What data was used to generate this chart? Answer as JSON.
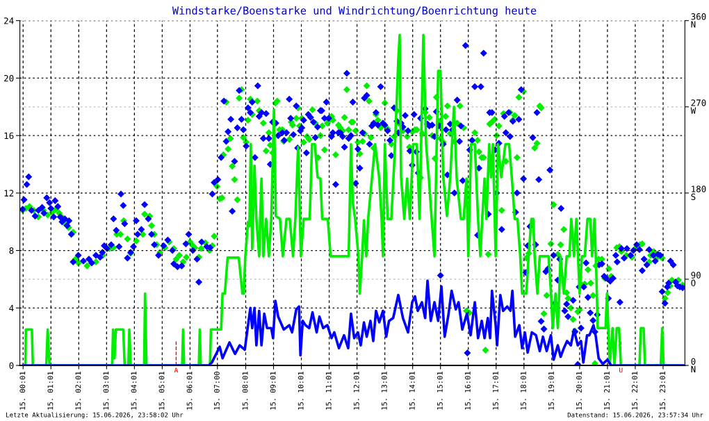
{
  "chart_data": {
    "type": "line",
    "title": "Windstarke/Boenstarke und Windrichtung/Boenrichtung heute",
    "xlim": [
      "2026-06-14T23:54",
      "2026-06-15T23:48"
    ],
    "xticks": [
      {
        "value": "2026-06-15T00:01",
        "label": "15. 00:01"
      },
      {
        "value": "2026-06-15T01:01",
        "label": "15. 01:01"
      },
      {
        "value": "2026-06-15T02:01",
        "label": "15. 02:01"
      },
      {
        "value": "2026-06-15T03:01",
        "label": "15. 03:01"
      },
      {
        "value": "2026-06-15T04:01",
        "label": "15. 04:01"
      },
      {
        "value": "2026-06-15T05:01",
        "label": "15. 05:01"
      },
      {
        "value": "2026-06-15T06:01",
        "label": "15. 06:01"
      },
      {
        "value": "2026-06-15T07:00",
        "label": "15. 07:00"
      },
      {
        "value": "2026-06-15T08:01",
        "label": "15. 08:01"
      },
      {
        "value": "2026-06-15T09:01",
        "label": "15. 09:01"
      },
      {
        "value": "2026-06-15T10:01",
        "label": "15. 10:01"
      },
      {
        "value": "2026-06-15T11:01",
        "label": "15. 11:01"
      },
      {
        "value": "2026-06-15T12:01",
        "label": "15. 12:01"
      },
      {
        "value": "2026-06-15T13:01",
        "label": "15. 13:01"
      },
      {
        "value": "2026-06-15T14:01",
        "label": "15. 14:01"
      },
      {
        "value": "2026-06-15T15:01",
        "label": "15. 15:01"
      },
      {
        "value": "2026-06-15T16:01",
        "label": "15. 16:01"
      },
      {
        "value": "2026-06-15T17:01",
        "label": "15. 17:01"
      },
      {
        "value": "2026-06-15T18:01",
        "label": "15. 18:01"
      },
      {
        "value": "2026-06-15T19:01",
        "label": "15. 19:01"
      },
      {
        "value": "2026-06-15T20:01",
        "label": "15. 20:01"
      },
      {
        "value": "2026-06-15T21:01",
        "label": "15. 21:01"
      },
      {
        "value": "2026-06-15T22:01",
        "label": "15. 22:01"
      },
      {
        "value": "2026-06-15T23:01",
        "label": "15. 23:01"
      }
    ],
    "ylim": [
      0,
      24
    ],
    "yticks": [
      0,
      4,
      8,
      12,
      16,
      20,
      24
    ],
    "y2lim": [
      0,
      360
    ],
    "y2ticks": [
      {
        "value": 0,
        "label": "0\nN"
      },
      {
        "value": 90,
        "label": "90\nO"
      },
      {
        "value": 180,
        "label": "180\nS"
      },
      {
        "value": 270,
        "label": "270\nW"
      },
      {
        "value": 360,
        "label": "360\nN"
      }
    ],
    "grid": true,
    "series": [
      {
        "type": "scatter",
        "axis": "y2",
        "marker": "diamond",
        "color": "#00ee00",
        "x": [
          "2026-06-15T00:00",
          "2026-06-15T00:07",
          "2026-06-15T00:15",
          "2026-06-15T00:24",
          "2026-06-15T00:34",
          "2026-06-15T00:45",
          "2026-06-15T00:54",
          "2026-06-15T01:04",
          "2026-06-15T01:12",
          "2026-06-15T01:19",
          "2026-06-15T01:24",
          "2026-06-15T01:31",
          "2026-06-15T01:39",
          "2026-06-15T01:49",
          "2026-06-15T01:54",
          "2026-06-15T02:00",
          "2026-06-15T02:19",
          "2026-06-15T02:38",
          "2026-06-15T02:53",
          "2026-06-15T03:07",
          "2026-06-15T03:16",
          "2026-06-15T03:23",
          "2026-06-15T03:31",
          "2026-06-15T03:38",
          "2026-06-15T03:46",
          "2026-06-15T03:53",
          "2026-06-15T04:05",
          "2026-06-15T04:19",
          "2026-06-15T04:23",
          "2026-06-15T04:34",
          "2026-06-15T04:38",
          "2026-06-15T04:44",
          "2026-06-15T04:49",
          "2026-06-15T04:56",
          "2026-06-15T05:07",
          "2026-06-15T05:16",
          "2026-06-15T05:26",
          "2026-06-15T05:31",
          "2026-06-15T05:38",
          "2026-06-15T05:46",
          "2026-06-15T05:53",
          "2026-06-15T06:01",
          "2026-06-15T06:07",
          "2026-06-15T06:11",
          "2026-06-15T06:20",
          "2026-06-15T06:25",
          "2026-06-15T06:34",
          "2026-06-15T06:43",
          "2026-06-15T06:49",
          "2026-06-15T06:53",
          "2026-06-15T06:59",
          "2026-06-15T07:05",
          "2026-06-15T07:10",
          "2026-06-15T07:13",
          "2026-06-15T07:19",
          "2026-06-15T07:23",
          "2026-06-15T07:28",
          "2026-06-15T07:32",
          "2026-06-15T07:37",
          "2026-06-15T07:43",
          "2026-06-15T07:47",
          "2026-06-15T07:52",
          "2026-06-15T07:56",
          "2026-06-15T08:02",
          "2026-06-15T08:06",
          "2026-06-15T08:11",
          "2026-06-15T08:15",
          "2026-06-15T08:26",
          "2026-06-15T08:30",
          "2026-06-15T08:39",
          "2026-06-15T08:45",
          "2026-06-15T08:51",
          "2026-06-15T08:54",
          "2026-06-15T08:59",
          "2026-06-15T09:05",
          "2026-06-15T09:09",
          "2026-06-15T09:14",
          "2026-06-15T09:20",
          "2026-06-15T09:23",
          "2026-06-15T09:35",
          "2026-06-15T09:39",
          "2026-06-15T09:42",
          "2026-06-15T09:50",
          "2026-06-15T09:54",
          "2026-06-15T09:57",
          "2026-06-15T10:02",
          "2026-06-15T10:06",
          "2026-06-15T10:13",
          "2026-06-15T10:18",
          "2026-06-15T10:25",
          "2026-06-15T10:31",
          "2026-06-15T10:37",
          "2026-06-15T10:42",
          "2026-06-15T10:46",
          "2026-06-15T10:51",
          "2026-06-15T10:57",
          "2026-06-15T11:01",
          "2026-06-15T11:06",
          "2026-06-15T11:09",
          "2026-06-15T11:15",
          "2026-06-15T11:21",
          "2026-06-15T11:25",
          "2026-06-15T11:30",
          "2026-06-15T11:34",
          "2026-06-15T11:39",
          "2026-06-15T11:43",
          "2026-06-15T11:49",
          "2026-06-15T11:52",
          "2026-06-15T11:58",
          "2026-06-15T12:03",
          "2026-06-15T12:07",
          "2026-06-15T12:13",
          "2026-06-15T12:17",
          "2026-06-15T12:22",
          "2026-06-15T12:27",
          "2026-06-15T12:31",
          "2026-06-15T12:37",
          "2026-06-15T12:42",
          "2026-06-15T12:46",
          "2026-06-15T12:52",
          "2026-06-15T13:01",
          "2026-06-15T13:07",
          "2026-06-15T13:15",
          "2026-06-15T13:21",
          "2026-06-15T13:27",
          "2026-06-15T13:31",
          "2026-06-15T13:40",
          "2026-06-15T13:49",
          "2026-06-15T13:54",
          "2026-06-15T14:00",
          "2026-06-15T14:06",
          "2026-06-15T14:10",
          "2026-06-15T14:18",
          "2026-06-15T14:22",
          "2026-06-15T14:28",
          "2026-06-15T14:37",
          "2026-06-15T14:43",
          "2026-06-15T14:49",
          "2026-06-15T14:52",
          "2026-06-15T14:58",
          "2026-06-15T15:01",
          "2026-06-15T15:07",
          "2026-06-15T15:12",
          "2026-06-15T15:16",
          "2026-06-15T15:22",
          "2026-06-15T15:31",
          "2026-06-15T15:37",
          "2026-06-15T15:43",
          "2026-06-15T15:51",
          "2026-06-15T15:57",
          "2026-06-15T16:03",
          "2026-06-15T16:10",
          "2026-06-15T16:15",
          "2026-06-15T16:21",
          "2026-06-15T16:24",
          "2026-06-15T16:30",
          "2026-06-15T16:34",
          "2026-06-15T16:38",
          "2026-06-15T16:44",
          "2026-06-15T16:47",
          "2026-06-15T16:52",
          "2026-06-15T16:58",
          "2026-06-15T17:02",
          "2026-06-15T17:07",
          "2026-06-15T17:13",
          "2026-06-15T17:17",
          "2026-06-15T17:22",
          "2026-06-15T17:31",
          "2026-06-15T17:37",
          "2026-06-15T17:41",
          "2026-06-15T17:46",
          "2026-06-15T17:50",
          "2026-06-15T18:00",
          "2026-06-15T18:06",
          "2026-06-15T18:11",
          "2026-06-15T18:24",
          "2026-06-15T18:29",
          "2026-06-15T18:35",
          "2026-06-15T18:38",
          "2026-06-15T18:44",
          "2026-06-15T18:50",
          "2026-06-15T18:59",
          "2026-06-15T19:05",
          "2026-06-15T19:14",
          "2026-06-15T19:20",
          "2026-06-15T19:27",
          "2026-06-15T19:33",
          "2026-06-15T19:36",
          "2026-06-15T19:42",
          "2026-06-15T19:47",
          "2026-06-15T19:51",
          "2026-06-15T19:57",
          "2026-06-15T20:01",
          "2026-06-15T20:06",
          "2026-06-15T20:12",
          "2026-06-15T20:19",
          "2026-06-15T20:25",
          "2026-06-15T20:30",
          "2026-06-15T20:34",
          "2026-06-15T20:36",
          "2026-06-15T20:42",
          "2026-06-15T20:49",
          "2026-06-15T20:55",
          "2026-06-15T21:04",
          "2026-06-15T21:09",
          "2026-06-15T21:21",
          "2026-06-15T21:27",
          "2026-06-15T21:31",
          "2026-06-15T21:42",
          "2026-06-15T21:54",
          "2026-06-15T22:01",
          "2026-06-15T22:11",
          "2026-06-15T22:16",
          "2026-06-15T22:31",
          "2026-06-15T22:34",
          "2026-06-15T22:41",
          "2026-06-15T22:47",
          "2026-06-15T22:59",
          "2026-06-15T23:05",
          "2026-06-15T23:11",
          "2026-06-15T23:16",
          "2026-06-15T23:20",
          "2026-06-15T23:34",
          "2026-06-15T23:43"
        ],
        "values": [
          162,
          164,
          166,
          162,
          155,
          162,
          157,
          160,
          163,
          159,
          155,
          148,
          144,
          139,
          111,
          107,
          104,
          108,
          115,
          122,
          123,
          137,
          137,
          151,
          132,
          117,
          130,
          137,
          158,
          156,
          146,
          137,
          126,
          118,
          123,
          129,
          122,
          111,
          115,
          108,
          113,
          129,
          125,
          123,
          113,
          122,
          128,
          120,
          125,
          135,
          187,
          174,
          175,
          220,
          275,
          226,
          237,
          208,
          194,
          173,
          279,
          288,
          238,
          233,
          256,
          278,
          262,
          276,
          266,
          253,
          224,
          243,
          230,
          222,
          274,
          276,
          246,
          246,
          234,
          236,
          254,
          251,
          258,
          269,
          250,
          258,
          233,
          239,
          236,
          267,
          253,
          217,
          240,
          250,
          225,
          253,
          256,
          260,
          256,
          220,
          251,
          248,
          245,
          259,
          288,
          246,
          254,
          254,
          245,
          233,
          221,
          234,
          242,
          292,
          276,
          238,
          227,
          262,
          256,
          248,
          274,
          247,
          231,
          239,
          266,
          253,
          245,
          239,
          228,
          244,
          246,
          246,
          196,
          242,
          264,
          259,
          240,
          216,
          280,
          255,
          237,
          233,
          260,
          271,
          242,
          234,
          253,
          271,
          248,
          57,
          55,
          235,
          243,
          235,
          223,
          217,
          217,
          16,
          116,
          252,
          254,
          257,
          240,
          250,
          162,
          263,
          213,
          264,
          256,
          261,
          217,
          280,
          286,
          112,
          117,
          227,
          232,
          271,
          269,
          54,
          73,
          127,
          168,
          116,
          126,
          142,
          76,
          70,
          60,
          48,
          36,
          56,
          58,
          84,
          85,
          100,
          86,
          73,
          2,
          104,
          111,
          111,
          91,
          101,
          93,
          123,
          124,
          119,
          115,
          113,
          122,
          126,
          127,
          108,
          115,
          119,
          112,
          112,
          70,
          76,
          83,
          89,
          89,
          84
        ]
      },
      {
        "type": "scatter",
        "axis": "y2",
        "marker": "diamond",
        "color": "#0000ff",
        "x": [
          "2026-06-15T00:00",
          "2026-06-15T00:03",
          "2026-06-15T00:09",
          "2026-06-15T00:13",
          "2026-06-15T00:19",
          "2026-06-15T00:27",
          "2026-06-15T00:34",
          "2026-06-15T00:42",
          "2026-06-15T00:46",
          "2026-06-15T00:52",
          "2026-06-15T00:58",
          "2026-06-15T01:01",
          "2026-06-15T01:07",
          "2026-06-15T01:10",
          "2026-06-15T01:16",
          "2026-06-15T01:21",
          "2026-06-15T01:25",
          "2026-06-15T01:31",
          "2026-06-15T01:36",
          "2026-06-15T01:40",
          "2026-06-15T01:45",
          "2026-06-15T01:49",
          "2026-06-15T02:00",
          "2026-06-15T02:11",
          "2026-06-15T02:23",
          "2026-06-15T02:29",
          "2026-06-15T02:38",
          "2026-06-15T02:47",
          "2026-06-15T02:52",
          "2026-06-15T02:56",
          "2026-06-15T03:02",
          "2026-06-15T03:11",
          "2026-06-15T03:16",
          "2026-06-15T03:22",
          "2026-06-15T03:28",
          "2026-06-15T03:32",
          "2026-06-15T03:37",
          "2026-06-15T03:40",
          "2026-06-15T03:46",
          "2026-06-15T03:53",
          "2026-06-15T03:59",
          "2026-06-15T04:05",
          "2026-06-15T04:08",
          "2026-06-15T04:16",
          "2026-06-15T04:23",
          "2026-06-15T04:31",
          "2026-06-15T04:38",
          "2026-06-15T04:44",
          "2026-06-15T04:53",
          "2026-06-15T05:04",
          "2026-06-15T05:13",
          "2026-06-15T05:23",
          "2026-06-15T05:26",
          "2026-06-15T05:34",
          "2026-06-15T05:43",
          "2026-06-15T05:52",
          "2026-06-15T05:58",
          "2026-06-15T06:07",
          "2026-06-15T06:16",
          "2026-06-15T06:20",
          "2026-06-15T06:26",
          "2026-06-15T06:37",
          "2026-06-15T06:44",
          "2026-06-15T06:49",
          "2026-06-15T06:53",
          "2026-06-15T07:01",
          "2026-06-15T07:08",
          "2026-06-15T07:14",
          "2026-06-15T07:19",
          "2026-06-15T07:23",
          "2026-06-15T07:29",
          "2026-06-15T07:32",
          "2026-06-15T07:37",
          "2026-06-15T07:43",
          "2026-06-15T07:47",
          "2026-06-15T07:52",
          "2026-06-15T07:56",
          "2026-06-15T08:02",
          "2026-06-15T08:06",
          "2026-06-15T08:11",
          "2026-06-15T08:15",
          "2026-06-15T08:21",
          "2026-06-15T08:27",
          "2026-06-15T08:30",
          "2026-06-15T08:35",
          "2026-06-15T08:39",
          "2026-06-15T08:45",
          "2026-06-15T08:51",
          "2026-06-15T08:54",
          "2026-06-15T08:59",
          "2026-06-15T09:06",
          "2026-06-15T09:11",
          "2026-06-15T09:20",
          "2026-06-15T09:24",
          "2026-06-15T09:29",
          "2026-06-15T09:35",
          "2026-06-15T09:38",
          "2026-06-15T09:44",
          "2026-06-15T09:50",
          "2026-06-15T09:53",
          "2026-06-15T09:59",
          "2026-06-15T10:02",
          "2026-06-15T10:06",
          "2026-06-15T10:12",
          "2026-06-15T10:16",
          "2026-06-15T10:21",
          "2026-06-15T10:27",
          "2026-06-15T10:31",
          "2026-06-15T10:36",
          "2026-06-15T10:42",
          "2026-06-15T10:45",
          "2026-06-15T10:51",
          "2026-06-15T10:55",
          "2026-06-15T11:00",
          "2026-06-15T11:06",
          "2026-06-15T11:09",
          "2026-06-15T11:15",
          "2026-06-15T11:21",
          "2026-06-15T11:25",
          "2026-06-15T11:30",
          "2026-06-15T11:34",
          "2026-06-15T11:39",
          "2026-06-15T11:43",
          "2026-06-15T11:48",
          "2026-06-15T11:52",
          "2026-06-15T11:58",
          "2026-06-15T12:03",
          "2026-06-15T12:07",
          "2026-06-15T12:13",
          "2026-06-15T12:17",
          "2026-06-15T12:22",
          "2026-06-15T12:28",
          "2026-06-15T12:33",
          "2026-06-15T12:37",
          "2026-06-15T12:42",
          "2026-06-15T12:46",
          "2026-06-15T12:52",
          "2026-06-15T12:57",
          "2026-06-15T13:01",
          "2026-06-15T13:07",
          "2026-06-15T13:12",
          "2026-06-15T13:15",
          "2026-06-15T13:21",
          "2026-06-15T13:27",
          "2026-06-15T13:30",
          "2026-06-15T13:36",
          "2026-06-15T13:40",
          "2026-06-15T13:45",
          "2026-06-15T13:51",
          "2026-06-15T13:55",
          "2026-06-15T14:00",
          "2026-06-15T14:04",
          "2026-06-15T14:09",
          "2026-06-15T14:13",
          "2026-06-15T14:18",
          "2026-06-15T14:28",
          "2026-06-15T14:33",
          "2026-06-15T14:37",
          "2026-06-15T14:43",
          "2026-06-15T14:48",
          "2026-06-15T14:52",
          "2026-06-15T14:58",
          "2026-06-15T15:01",
          "2026-06-15T15:07",
          "2026-06-15T15:13",
          "2026-06-15T15:16",
          "2026-06-15T15:22",
          "2026-06-15T15:27",
          "2026-06-15T15:31",
          "2026-06-15T15:37",
          "2026-06-15T15:42",
          "2026-06-15T15:45",
          "2026-06-15T15:49",
          "2026-06-15T15:55",
          "2026-06-15T15:59",
          "2026-06-15T16:04",
          "2026-06-15T16:09",
          "2026-06-15T16:15",
          "2026-06-15T16:21",
          "2026-06-15T16:24",
          "2026-06-15T16:28",
          "2026-06-15T16:34",
          "2026-06-15T16:44",
          "2026-06-15T16:47",
          "2026-06-15T16:52",
          "2026-06-15T16:59",
          "2026-06-15T17:02",
          "2026-06-15T17:07",
          "2026-06-15T17:13",
          "2026-06-15T17:19",
          "2026-06-15T17:22",
          "2026-06-15T17:28",
          "2026-06-15T17:31",
          "2026-06-15T17:37",
          "2026-06-15T17:43",
          "2026-06-15T17:46",
          "2026-06-15T17:50",
          "2026-06-15T17:55",
          "2026-06-15T18:00",
          "2026-06-15T18:05",
          "2026-06-15T18:09",
          "2026-06-15T18:14",
          "2026-06-15T18:20",
          "2026-06-15T18:26",
          "2026-06-15T18:29",
          "2026-06-15T18:33",
          "2026-06-15T18:38",
          "2026-06-15T18:44",
          "2026-06-15T18:48",
          "2026-06-15T18:53",
          "2026-06-15T18:57",
          "2026-06-15T19:05",
          "2026-06-15T19:08",
          "2026-06-15T19:14",
          "2026-06-15T19:18",
          "2026-06-15T19:21",
          "2026-06-15T19:29",
          "2026-06-15T19:33",
          "2026-06-15T19:36",
          "2026-06-15T19:47",
          "2026-06-15T19:51",
          "2026-06-15T19:57",
          "2026-06-15T20:00",
          "2026-06-15T20:04",
          "2026-06-15T20:10",
          "2026-06-15T20:15",
          "2026-06-15T20:19",
          "2026-06-15T20:24",
          "2026-06-15T20:30",
          "2026-06-15T20:34",
          "2026-06-15T20:39",
          "2026-06-15T20:43",
          "2026-06-15T20:49",
          "2026-06-15T20:54",
          "2026-06-15T20:58",
          "2026-06-15T21:03",
          "2026-06-15T21:07",
          "2026-06-15T21:13",
          "2026-06-15T21:19",
          "2026-06-15T21:22",
          "2026-06-15T21:28",
          "2026-06-15T21:31",
          "2026-06-15T21:37",
          "2026-06-15T21:43",
          "2026-06-15T21:51",
          "2026-06-15T21:57",
          "2026-06-15T22:04",
          "2026-06-15T22:10",
          "2026-06-15T22:16",
          "2026-06-15T22:20",
          "2026-06-15T22:26",
          "2026-06-15T22:31",
          "2026-06-15T22:40",
          "2026-06-15T22:44",
          "2026-06-15T22:50",
          "2026-06-15T22:55",
          "2026-06-15T22:59",
          "2026-06-15T23:05",
          "2026-06-15T23:10",
          "2026-06-15T23:13",
          "2026-06-15T23:17",
          "2026-06-15T23:23",
          "2026-06-15T23:28",
          "2026-06-15T23:32",
          "2026-06-15T23:37",
          "2026-06-15T23:43"
        ],
        "values": [
          163,
          173,
          189,
          197,
          162,
          156,
          162,
          165,
          159,
          175,
          170,
          164,
          155,
          172,
          166,
          155,
          150,
          153,
          146,
          151,
          137,
          108,
          115,
          109,
          111,
          107,
          115,
          113,
          118,
          125,
          122,
          126,
          153,
          141,
          124,
          179,
          167,
          148,
          112,
          118,
          124,
          151,
          137,
          142,
          168,
          153,
          137,
          126,
          115,
          125,
          131,
          120,
          106,
          103,
          104,
          127,
          137,
          120,
          111,
          87,
          129,
          124,
          123,
          179,
          191,
          194,
          217,
          276,
          234,
          244,
          257,
          161,
          213,
          248,
          287,
          257,
          246,
          229,
          269,
          264,
          275,
          217,
          292,
          260,
          264,
          237,
          263,
          237,
          210,
          254,
          253,
          240,
          243,
          235,
          243,
          278,
          258,
          241,
          271,
          227,
          245,
          248,
          256,
          222,
          262,
          259,
          254,
          238,
          249,
          266,
          266,
          258,
          275,
          258,
          239,
          243,
          189,
          243,
          243,
          239,
          228,
          305,
          237,
          240,
          275,
          190,
          226,
          206,
          243,
          279,
          282,
          231,
          250,
          253,
          264,
          251,
          291,
          253,
          251,
          245,
          235,
          219,
          269,
          255,
          243,
          253,
          249,
          261,
          245,
          224,
          209,
          262,
          223,
          201,
          258,
          268,
          252,
          250,
          251,
          239,
          265,
          250,
          94,
          231,
          246,
          199,
          252,
          246,
          180,
          277,
          234,
          250,
          193,
          334,
          13,
          225,
          235,
          291,
          136,
          206,
          291,
          326,
          158,
          264,
          264,
          225,
          180,
          232,
          142,
          260,
          243,
          264,
          239,
          255,
          160,
          180,
          257,
          288,
          195,
          97,
          125,
          145,
          238,
          126,
          264,
          194,
          46,
          38,
          98,
          101,
          204,
          115,
          65,
          89,
          111,
          164,
          57,
          64,
          51,
          68,
          35,
          1,
          82,
          39,
          82,
          107,
          71,
          55,
          47,
          35,
          53,
          105,
          106,
          93,
          91,
          70,
          88,
          91,
          115,
          108,
          66,
          122,
          112,
          122,
          115,
          120,
          126,
          121,
          99,
          111,
          105,
          121,
          115,
          109,
          116,
          115,
          77,
          65,
          82,
          86,
          109,
          105,
          87,
          83,
          82,
          81
        ]
      },
      {
        "color": "#00ee00",
        "x": [
          "2026-06-15T00:00",
          "2026-06-15T00:06",
          "2026-06-15T00:07",
          "2026-06-15T00:20",
          "2026-06-15T00:22",
          "2026-06-15T00:51",
          "2026-06-15T00:54",
          "2026-06-15T00:58",
          "2026-06-15T03:13",
          "2026-06-15T03:15",
          "2026-06-15T03:18",
          "2026-06-15T03:21",
          "2026-06-15T03:37",
          "2026-06-15T03:40",
          "2026-06-15T03:48",
          "2026-06-15T03:50",
          "2026-06-15T03:53",
          "2026-06-15T04:22",
          "2026-06-15T04:24",
          "2026-06-15T04:27",
          "2026-06-15T05:44",
          "2026-06-15T05:46",
          "2026-06-15T05:48",
          "2026-06-15T06:20",
          "2026-06-15T06:22",
          "2026-06-15T06:24",
          "2026-06-15T06:44",
          "2026-06-15T06:46",
          "2026-06-15T07:08",
          "2026-06-15T07:11",
          "2026-06-15T07:16",
          "2026-06-15T07:22",
          "2026-06-15T07:46",
          "2026-06-15T07:54",
          "2026-06-15T07:57",
          "2026-06-15T08:00",
          "2026-06-15T08:06",
          "2026-06-15T08:09",
          "2026-06-15T08:12",
          "2026-06-15T08:15",
          "2026-06-15T08:20",
          "2026-06-15T08:24",
          "2026-06-15T08:30",
          "2026-06-15T08:35",
          "2026-06-15T08:39",
          "2026-06-15T08:45",
          "2026-06-15T08:51",
          "2026-06-15T08:56",
          "2026-06-15T09:02",
          "2026-06-15T09:06",
          "2026-06-15T09:15",
          "2026-06-15T09:21",
          "2026-06-15T09:29",
          "2026-06-15T09:36",
          "2026-06-15T09:43",
          "2026-06-15T09:48",
          "2026-06-15T09:54",
          "2026-06-15T10:00",
          "2026-06-15T10:06",
          "2026-06-15T10:10",
          "2026-06-15T10:19",
          "2026-06-15T10:24",
          "2026-06-15T10:30",
          "2026-06-15T10:36",
          "2026-06-15T10:42",
          "2026-06-15T10:46",
          "2026-06-15T10:58",
          "2026-06-15T11:04",
          "2026-06-15T11:43",
          "2026-06-15T11:48",
          "2026-06-15T11:52",
          "2026-06-15T11:57",
          "2026-06-15T12:04",
          "2026-06-15T12:07",
          "2026-06-15T12:12",
          "2026-06-15T12:16",
          "2026-06-15T12:21",
          "2026-06-15T12:25",
          "2026-06-15T12:40",
          "2026-06-15T12:49",
          "2026-06-15T12:54",
          "2026-06-15T12:57",
          "2026-06-15T13:01",
          "2026-06-15T13:07",
          "2026-06-15T13:15",
          "2026-06-15T13:22",
          "2026-06-15T13:30",
          "2026-06-15T13:33",
          "2026-06-15T13:36",
          "2026-06-15T13:43",
          "2026-06-15T13:49",
          "2026-06-15T13:55",
          "2026-06-15T14:02",
          "2026-06-15T14:10",
          "2026-06-15T14:16",
          "2026-06-15T14:24",
          "2026-06-15T14:30",
          "2026-06-15T14:36",
          "2026-06-15T14:42",
          "2026-06-15T14:48",
          "2026-06-15T14:56",
          "2026-06-15T15:01",
          "2026-06-15T15:07",
          "2026-06-15T15:15",
          "2026-06-15T15:22",
          "2026-06-15T15:30",
          "2026-06-15T15:36",
          "2026-06-15T15:45",
          "2026-06-15T15:51",
          "2026-06-15T15:57",
          "2026-06-15T16:01",
          "2026-06-15T16:07",
          "2026-06-15T16:15",
          "2026-06-15T16:22",
          "2026-06-15T16:27",
          "2026-06-15T16:31",
          "2026-06-15T16:36",
          "2026-06-15T16:40",
          "2026-06-15T16:46",
          "2026-06-15T16:50",
          "2026-06-15T16:54",
          "2026-06-15T17:00",
          "2026-06-15T17:05",
          "2026-06-15T17:12",
          "2026-06-15T17:21",
          "2026-06-15T17:29",
          "2026-06-15T17:35",
          "2026-06-15T17:41",
          "2026-06-15T17:47",
          "2026-06-15T17:53",
          "2026-06-15T17:57",
          "2026-06-15T18:06",
          "2026-06-15T18:11",
          "2026-06-15T18:17",
          "2026-06-15T18:21",
          "2026-06-15T18:24",
          "2026-06-15T18:30",
          "2026-06-15T18:35",
          "2026-06-15T18:54",
          "2026-06-15T18:59",
          "2026-06-15T19:03",
          "2026-06-15T19:09",
          "2026-06-15T19:14",
          "2026-06-15T19:20",
          "2026-06-15T19:27",
          "2026-06-15T19:33",
          "2026-06-15T19:39",
          "2026-06-15T19:43",
          "2026-06-15T19:49",
          "2026-06-15T19:54",
          "2026-06-15T20:01",
          "2026-06-15T20:06",
          "2026-06-15T20:12",
          "2026-06-15T20:18",
          "2026-06-15T20:24",
          "2026-06-15T20:28",
          "2026-06-15T20:33",
          "2026-06-15T20:37",
          "2026-06-15T20:40",
          "2026-06-15T20:57",
          "2026-06-15T21:00",
          "2026-06-15T21:03",
          "2026-06-15T21:06",
          "2026-06-15T21:12",
          "2026-06-15T21:16",
          "2026-06-15T21:21",
          "2026-06-15T21:26",
          "2026-06-15T21:30",
          "2026-06-15T22:10",
          "2026-06-15T22:13",
          "2026-06-15T22:19",
          "2026-06-15T22:22",
          "2026-06-15T22:56",
          "2026-06-15T22:59",
          "2026-06-15T23:02",
          "2026-06-15T23:46"
        ],
        "values": [
          0,
          0,
          2.5,
          2.5,
          0,
          0,
          2.5,
          0,
          0,
          2.5,
          0.5,
          2.5,
          2.5,
          0,
          0,
          2.5,
          0,
          0,
          5.0,
          0,
          0,
          2.5,
          0,
          0,
          2.5,
          0,
          0,
          2.5,
          2.5,
          5.0,
          5.0,
          7.5,
          7.5,
          5.0,
          5.0,
          7.5,
          10.0,
          9.7,
          15.4,
          8.1,
          13.9,
          10.2,
          7.6,
          13.0,
          7.6,
          10.2,
          7.6,
          10.1,
          17.8,
          10.4,
          10.2,
          7.6,
          10.2,
          10.2,
          7.6,
          10.2,
          15.2,
          7.6,
          10.2,
          10.2,
          10.2,
          15.4,
          15.4,
          13.1,
          13.0,
          10.2,
          10.2,
          7.6,
          7.6,
          15.4,
          11.3,
          10.2,
          7.6,
          5.0,
          7.6,
          10.1,
          7.6,
          10.2,
          15.4,
          13.0,
          10.2,
          7.6,
          15.4,
          10.2,
          10.2,
          14.6,
          21.3,
          23.0,
          13.1,
          10.2,
          13.0,
          10.2,
          15.4,
          15.4,
          10.2,
          23.0,
          15.4,
          13.0,
          10.2,
          7.6,
          20.5,
          20.5,
          13.1,
          10.4,
          13.1,
          18.0,
          13.0,
          10.2,
          10.2,
          13.0,
          7.6,
          15.4,
          15.4,
          10.2,
          7.6,
          10.2,
          13.0,
          10.2,
          15.4,
          13.1,
          15.4,
          7.6,
          15.4,
          13.1,
          15.4,
          15.4,
          13.0,
          10.2,
          10.2,
          7.6,
          5.0,
          5.0,
          7.6,
          10.2,
          10.2,
          7.6,
          5.0,
          7.6,
          7.6,
          5.2,
          2.6,
          5.0,
          2.6,
          7.6,
          5.0,
          7.6,
          7.6,
          10.2,
          7.6,
          10.2,
          5.0,
          7.6,
          7.6,
          10.2,
          10.2,
          7.6,
          10.2,
          6.5,
          2.6,
          2.6,
          5.0,
          2.5,
          0,
          2.6,
          0,
          2.6,
          2.6,
          0,
          0,
          2.6,
          2.6,
          0,
          0,
          2.6,
          0,
          0
        ]
      },
      {
        "color": "#0000ff",
        "x": [
          "2026-06-15T00:00",
          "2026-06-15T06:41",
          "2026-06-15T06:48",
          "2026-06-15T07:05",
          "2026-06-15T07:11",
          "2026-06-15T07:26",
          "2026-06-15T07:38",
          "2026-06-15T07:48",
          "2026-06-15T07:59",
          "2026-06-15T08:11",
          "2026-06-15T08:15",
          "2026-06-15T08:20",
          "2026-06-15T08:24",
          "2026-06-15T08:30",
          "2026-06-15T08:35",
          "2026-06-15T08:41",
          "2026-06-15T08:47",
          "2026-06-15T08:56",
          "2026-06-15T09:00",
          "2026-06-15T09:05",
          "2026-06-15T09:11",
          "2026-06-15T09:23",
          "2026-06-15T09:35",
          "2026-06-15T09:41",
          "2026-06-15T09:50",
          "2026-06-15T09:56",
          "2026-06-15T09:59",
          "2026-06-15T10:04",
          "2026-06-15T10:10",
          "2026-06-15T10:18",
          "2026-06-15T10:25",
          "2026-06-15T10:34",
          "2026-06-15T10:40",
          "2026-06-15T10:48",
          "2026-06-15T10:57",
          "2026-06-15T11:06",
          "2026-06-15T11:12",
          "2026-06-15T11:22",
          "2026-06-15T11:33",
          "2026-06-15T11:42",
          "2026-06-15T11:48",
          "2026-06-15T11:55",
          "2026-06-15T12:03",
          "2026-06-15T12:09",
          "2026-06-15T12:16",
          "2026-06-15T12:22",
          "2026-06-15T12:30",
          "2026-06-15T12:36",
          "2026-06-15T12:42",
          "2026-06-15T12:49",
          "2026-06-15T12:57",
          "2026-06-15T13:04",
          "2026-06-15T13:10",
          "2026-06-15T13:19",
          "2026-06-15T13:30",
          "2026-06-15T13:40",
          "2026-06-15T13:51",
          "2026-06-15T14:00",
          "2026-06-15T14:06",
          "2026-06-15T14:12",
          "2026-06-15T14:21",
          "2026-06-15T14:28",
          "2026-06-15T14:33",
          "2026-06-15T14:40",
          "2026-06-15T14:48",
          "2026-06-15T14:56",
          "2026-06-15T15:03",
          "2026-06-15T15:10",
          "2026-06-15T15:18",
          "2026-06-15T15:25",
          "2026-06-15T15:34",
          "2026-06-15T15:40",
          "2026-06-15T15:48",
          "2026-06-15T15:58",
          "2026-06-15T16:06",
          "2026-06-15T16:15",
          "2026-06-15T16:22",
          "2026-06-15T16:30",
          "2026-06-15T16:36",
          "2026-06-15T16:43",
          "2026-06-15T16:48",
          "2026-06-15T16:52",
          "2026-06-15T17:00",
          "2026-06-15T17:03",
          "2026-06-15T17:10",
          "2026-06-15T17:16",
          "2026-06-15T17:25",
          "2026-06-15T17:32",
          "2026-06-15T17:36",
          "2026-06-15T17:42",
          "2026-06-15T17:51",
          "2026-06-15T17:57",
          "2026-06-15T18:03",
          "2026-06-15T18:09",
          "2026-06-15T18:18",
          "2026-06-15T18:27",
          "2026-06-15T18:35",
          "2026-06-15T18:42",
          "2026-06-15T18:50",
          "2026-06-15T18:59",
          "2026-06-15T19:05",
          "2026-06-15T19:14",
          "2026-06-15T19:20",
          "2026-06-15T19:27",
          "2026-06-15T19:34",
          "2026-06-15T19:42",
          "2026-06-15T19:49",
          "2026-06-15T19:57",
          "2026-06-15T20:04",
          "2026-06-15T20:09",
          "2026-06-15T20:17",
          "2026-06-15T20:22",
          "2026-06-15T20:31",
          "2026-06-15T20:36",
          "2026-06-15T20:42",
          "2026-06-15T20:51",
          "2026-06-15T21:01",
          "2026-06-15T21:09",
          "2026-06-15T23:46"
        ],
        "values": [
          0,
          0,
          0.2,
          1.3,
          0.5,
          1.6,
          0.8,
          1.4,
          1.1,
          4.0,
          2.6,
          4.0,
          1.4,
          3.8,
          1.4,
          3.6,
          2.6,
          2.6,
          1.9,
          4.5,
          3.4,
          2.5,
          2.8,
          2.3,
          3.9,
          4.1,
          0.7,
          3.1,
          2.8,
          2.6,
          3.7,
          2.3,
          3.4,
          2.6,
          2.8,
          1.9,
          2.3,
          1.2,
          2.1,
          1.2,
          3.6,
          1.9,
          2.3,
          1.4,
          3.0,
          2.0,
          3.1,
          1.7,
          3.8,
          3.0,
          3.8,
          2.0,
          3.1,
          3.3,
          4.9,
          3.3,
          2.3,
          4.4,
          4.8,
          3.8,
          4.4,
          3.3,
          5.9,
          3.1,
          4.4,
          3.1,
          5.5,
          2.0,
          3.5,
          5.2,
          3.9,
          4.4,
          2.5,
          3.6,
          2.1,
          4.4,
          1.9,
          3.1,
          1.9,
          3.3,
          1.9,
          5.2,
          2.8,
          1.4,
          4.9,
          3.8,
          4.1,
          3.8,
          5.2,
          2.0,
          2.8,
          1.2,
          2.3,
          0.9,
          2.3,
          2.1,
          1.0,
          2.0,
          1.0,
          2.1,
          0.4,
          1.4,
          0.6,
          1.2,
          1.7,
          1.4,
          2.5,
          1.4,
          1.7,
          0.2,
          2.1,
          2.1,
          2.8,
          2.0,
          0.5,
          0.1,
          0.4,
          0,
          0
        ]
      }
    ],
    "ref_lines": [
      {
        "axis": "x",
        "value": "2026-06-15T05:31",
        "label": "A",
        "color": "#ff0000",
        "line_style": "dashed"
      },
      {
        "axis": "x",
        "value": "2026-06-15T21:30",
        "label": "U",
        "color": "#ff0000",
        "line_style": "dashed"
      }
    ],
    "annotations": [
      "Letzte Aktualisierung: 15.06.2026, 23:58:02 Uhr",
      "Datenstand: 15.06.2026, 23:57:34 Uhr"
    ]
  }
}
